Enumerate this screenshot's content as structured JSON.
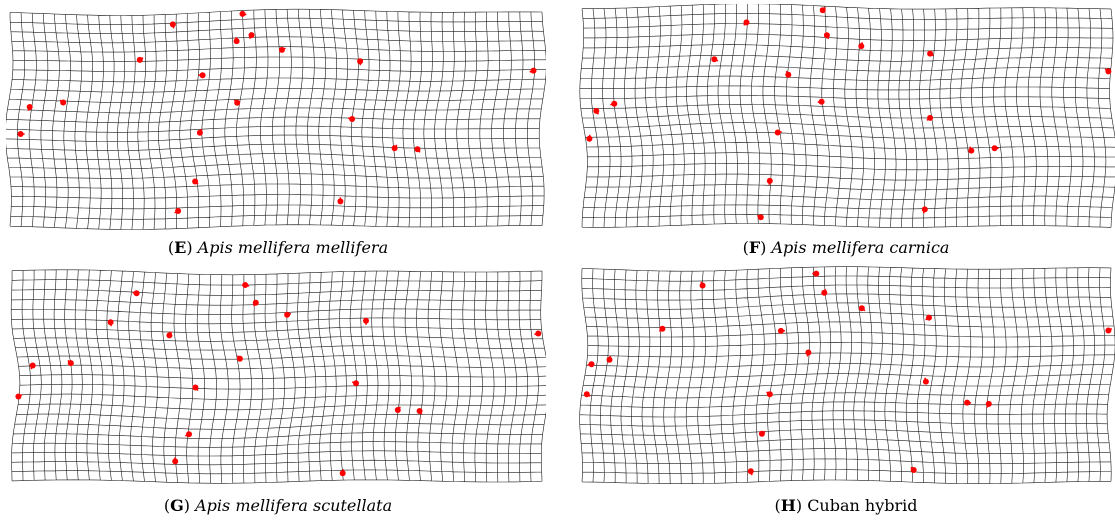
{
  "panels": [
    {
      "letter": "E",
      "species": "Apis mellifera mellifera",
      "plain": "",
      "landmarks": [
        [
          0.02,
          0.57
        ],
        [
          0.037,
          0.444
        ],
        [
          0.1,
          0.423
        ],
        [
          0.244,
          0.224
        ],
        [
          0.306,
          0.058
        ],
        [
          0.362,
          0.296
        ],
        [
          0.357,
          0.564
        ],
        [
          0.348,
          0.792
        ],
        [
          0.316,
          0.93
        ],
        [
          0.426,
          0.136
        ],
        [
          0.437,
          0.009
        ],
        [
          0.454,
          0.108
        ],
        [
          0.427,
          0.424
        ],
        [
          0.511,
          0.177
        ],
        [
          0.658,
          0.23
        ],
        [
          0.643,
          0.5
        ],
        [
          0.723,
          0.637
        ],
        [
          0.766,
          0.641
        ],
        [
          0.984,
          0.274
        ],
        [
          0.621,
          0.885
        ]
      ]
    },
    {
      "letter": "F",
      "species": "Apis mellifera carnica",
      "plain": "",
      "landmarks": [
        [
          0.027,
          0.472
        ],
        [
          0.061,
          0.439
        ],
        [
          0.014,
          0.6
        ],
        [
          0.25,
          0.235
        ],
        [
          0.311,
          0.066
        ],
        [
          0.39,
          0.306
        ],
        [
          0.37,
          0.571
        ],
        [
          0.355,
          0.793
        ],
        [
          0.338,
          0.96
        ],
        [
          0.455,
          0.01
        ],
        [
          0.463,
          0.125
        ],
        [
          0.453,
          0.43
        ],
        [
          0.528,
          0.175
        ],
        [
          0.658,
          0.209
        ],
        [
          0.658,
          0.504
        ],
        [
          0.736,
          0.654
        ],
        [
          0.78,
          0.643
        ],
        [
          0.648,
          0.924
        ],
        [
          0.995,
          0.291
        ]
      ]
    },
    {
      "letter": "G",
      "species": "Apis mellifera scutellata",
      "plain": "",
      "landmarks": [
        [
          0.039,
          0.445
        ],
        [
          0.111,
          0.434
        ],
        [
          0.012,
          0.593
        ],
        [
          0.186,
          0.239
        ],
        [
          0.235,
          0.101
        ],
        [
          0.297,
          0.302
        ],
        [
          0.346,
          0.55
        ],
        [
          0.334,
          0.773
        ],
        [
          0.308,
          0.902
        ],
        [
          0.44,
          0.062
        ],
        [
          0.46,
          0.146
        ],
        [
          0.43,
          0.413
        ],
        [
          0.519,
          0.204
        ],
        [
          0.668,
          0.232
        ],
        [
          0.649,
          0.53
        ],
        [
          0.728,
          0.657
        ],
        [
          0.769,
          0.662
        ],
        [
          0.993,
          0.293
        ],
        [
          0.624,
          0.958
        ]
      ]
    },
    {
      "letter": "H",
      "species": "",
      "plain": "Cuban hybrid",
      "landmarks": [
        [
          0.018,
          0.45
        ],
        [
          0.052,
          0.429
        ],
        [
          0.009,
          0.59
        ],
        [
          0.152,
          0.284
        ],
        [
          0.228,
          0.082
        ],
        [
          0.376,
          0.294
        ],
        [
          0.428,
          0.395
        ],
        [
          0.355,
          0.59
        ],
        [
          0.34,
          0.775
        ],
        [
          0.319,
          0.95
        ],
        [
          0.443,
          0.026
        ],
        [
          0.458,
          0.116
        ],
        [
          0.529,
          0.188
        ],
        [
          0.656,
          0.232
        ],
        [
          0.65,
          0.531
        ],
        [
          0.728,
          0.629
        ],
        [
          0.769,
          0.635
        ],
        [
          0.627,
          0.944
        ],
        [
          0.995,
          0.292
        ]
      ]
    }
  ],
  "colors": {
    "grid": "#1a1a1a",
    "landmark": "#ff0000"
  }
}
